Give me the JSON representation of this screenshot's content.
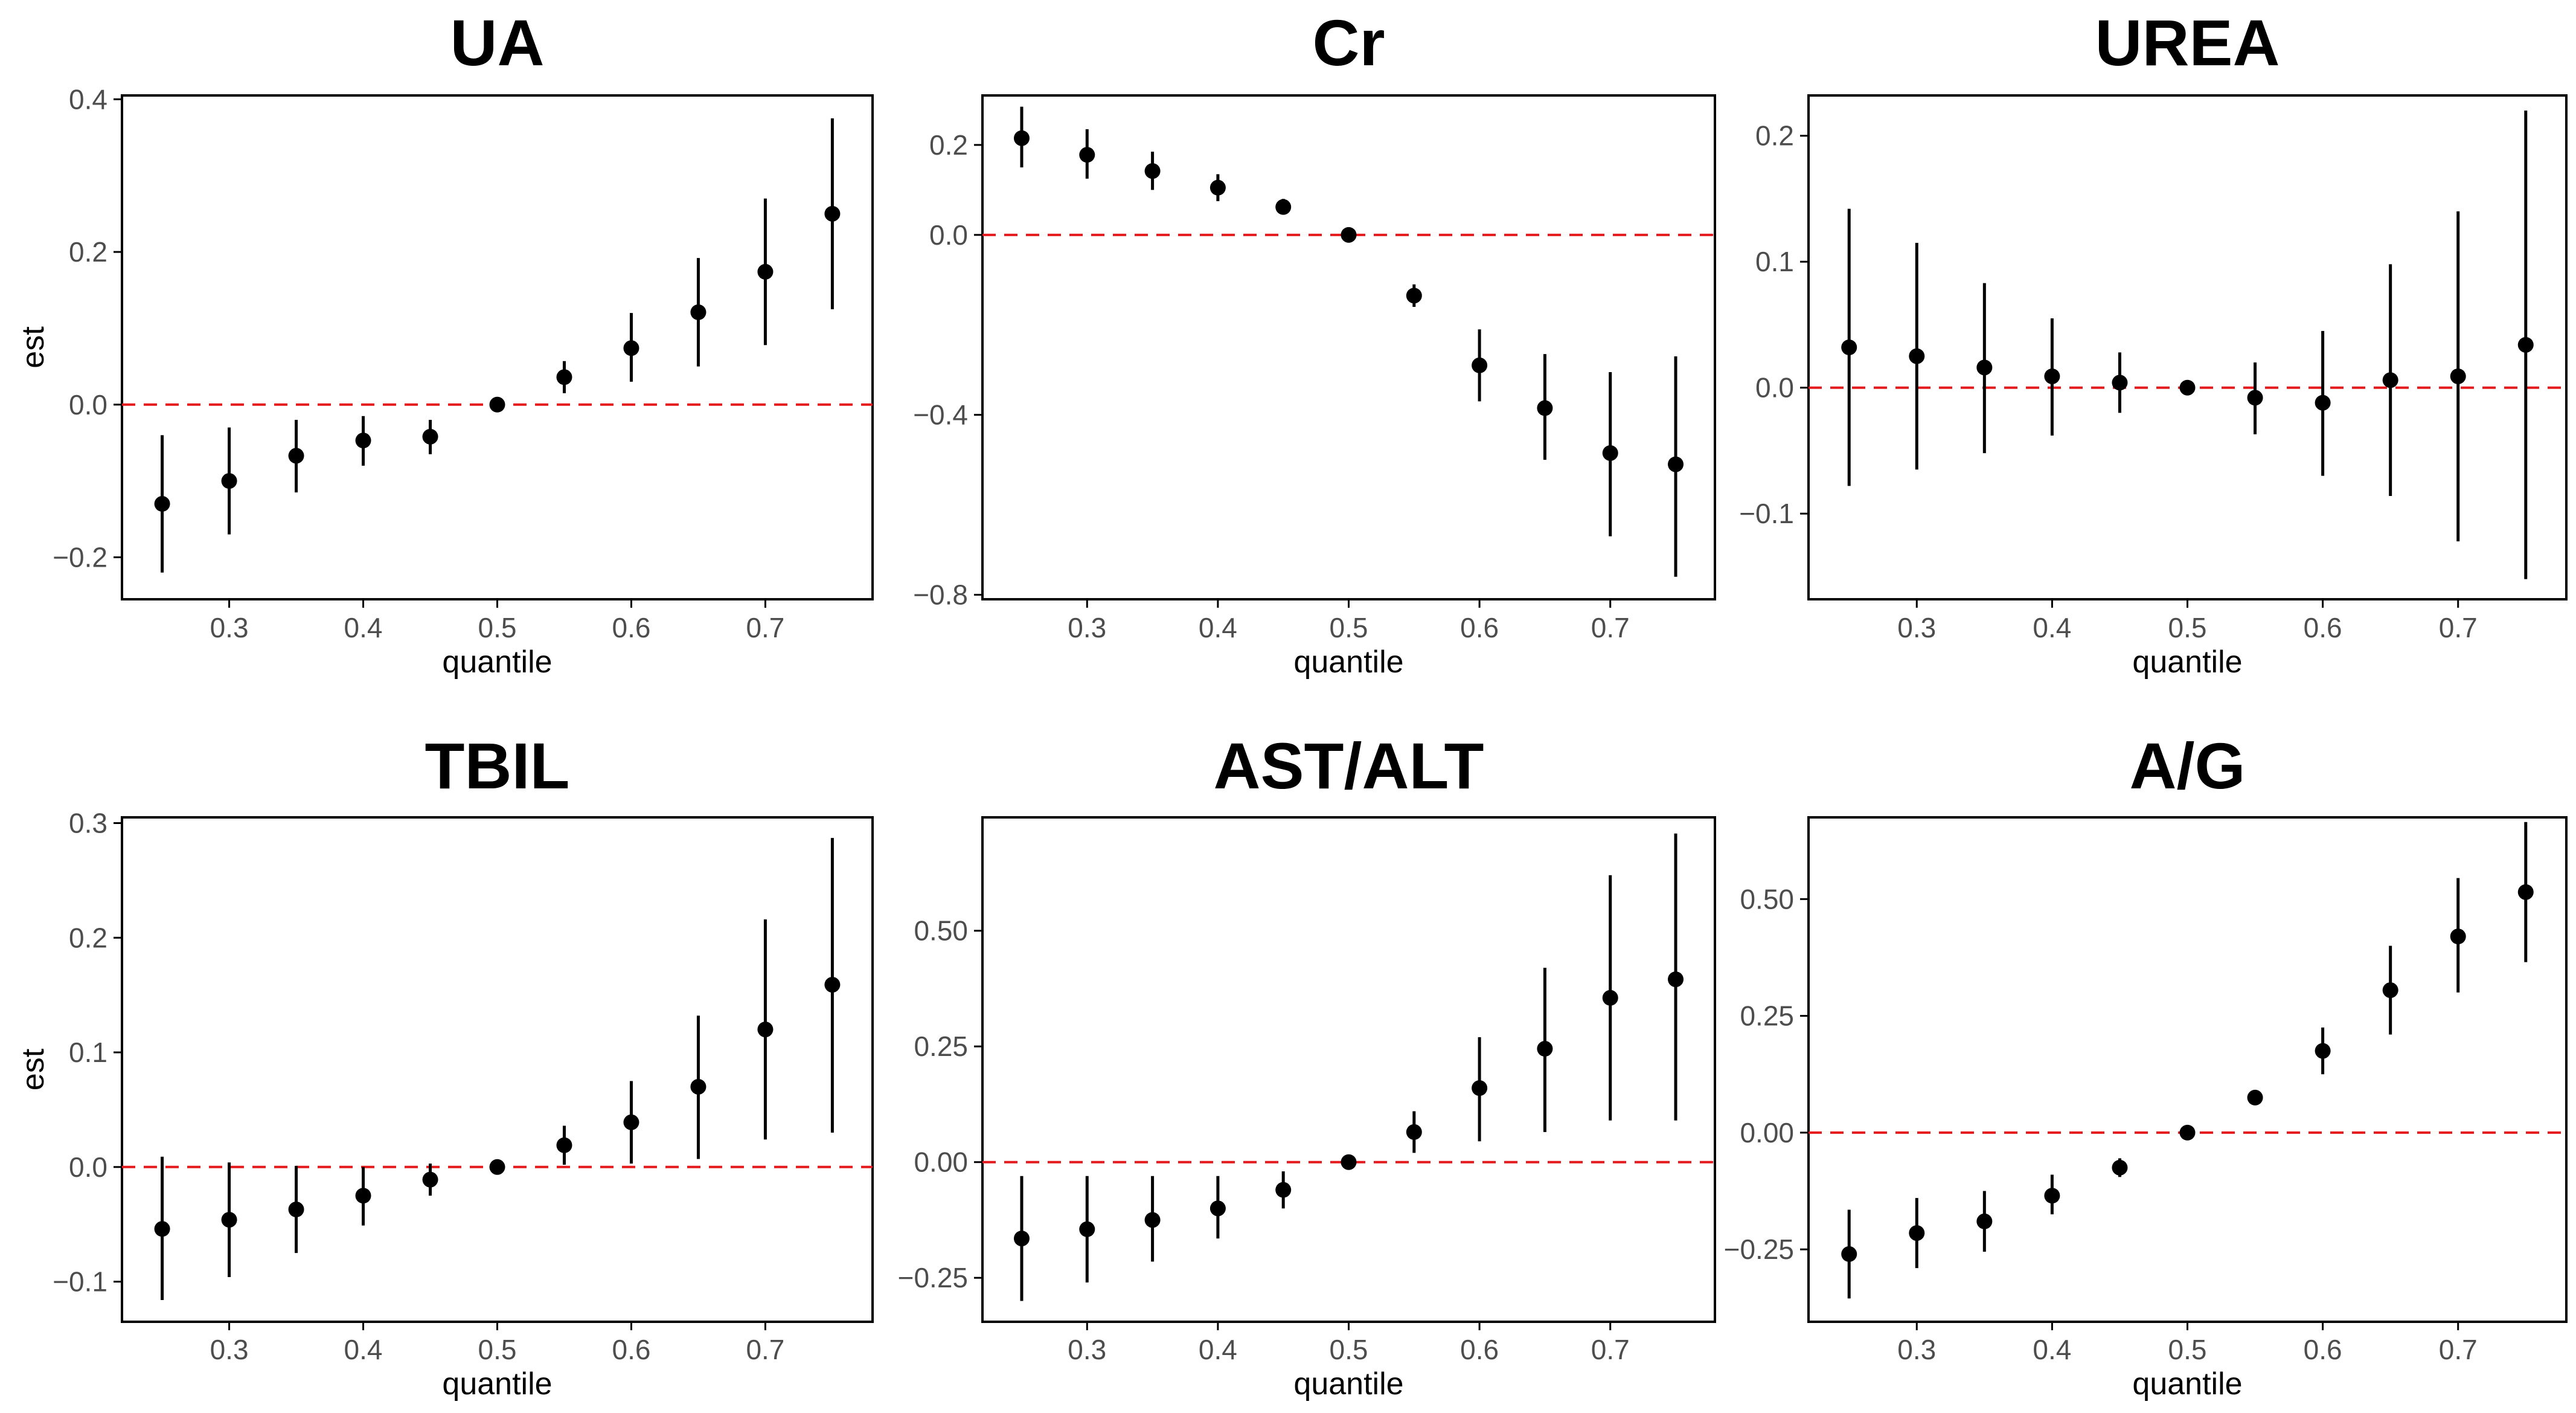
{
  "colors": {
    "point": "#000000",
    "reference_line": "#e41a1c",
    "panel_border": "#000000",
    "tick_label": "#4d4d4d"
  },
  "chart_data": [
    {
      "type": "scatter",
      "title": "UA",
      "xlabel": "quantile",
      "ylabel": "est",
      "xlim": [
        0.22,
        0.78
      ],
      "ylim": [
        -0.255,
        0.405
      ],
      "x_ticks": [
        0.3,
        0.4,
        0.5,
        0.6,
        0.7
      ],
      "x_tick_labels": [
        "0.3",
        "0.4",
        "0.5",
        "0.6",
        "0.7"
      ],
      "y_ticks": [
        -0.2,
        0.0,
        0.2,
        0.4
      ],
      "y_tick_labels": [
        "−0.2",
        "0.0",
        "0.2",
        "0.4"
      ],
      "reference_y": 0,
      "grid": false,
      "x": [
        0.25,
        0.3,
        0.35,
        0.4,
        0.45,
        0.5,
        0.55,
        0.6,
        0.65,
        0.7,
        0.75
      ],
      "y": [
        -0.13,
        -0.1,
        -0.067,
        -0.047,
        -0.042,
        0.0,
        0.036,
        0.074,
        0.121,
        0.174,
        0.25
      ],
      "lower": [
        -0.22,
        -0.17,
        -0.115,
        -0.08,
        -0.065,
        0.0,
        0.015,
        0.03,
        0.05,
        0.078,
        0.125
      ],
      "upper": [
        -0.04,
        -0.03,
        -0.02,
        -0.015,
        -0.02,
        0.0,
        0.057,
        0.12,
        0.192,
        0.27,
        0.375
      ]
    },
    {
      "type": "scatter",
      "title": "Cr",
      "xlabel": "quantile",
      "ylabel": "",
      "xlim": [
        0.22,
        0.78
      ],
      "ylim": [
        -0.81,
        0.31
      ],
      "x_ticks": [
        0.3,
        0.4,
        0.5,
        0.6,
        0.7
      ],
      "x_tick_labels": [
        "0.3",
        "0.4",
        "0.5",
        "0.6",
        "0.7"
      ],
      "y_ticks": [
        -0.8,
        -0.4,
        0.0,
        0.2
      ],
      "y_tick_labels": [
        "−0.8",
        "−0.4",
        "0.0",
        "0.2"
      ],
      "reference_y": 0,
      "grid": false,
      "x": [
        0.25,
        0.3,
        0.35,
        0.4,
        0.45,
        0.5,
        0.55,
        0.6,
        0.65,
        0.7,
        0.75
      ],
      "y": [
        0.215,
        0.178,
        0.142,
        0.105,
        0.062,
        0.0,
        -0.135,
        -0.29,
        -0.385,
        -0.485,
        -0.51
      ],
      "lower": [
        0.15,
        0.125,
        0.1,
        0.075,
        0.045,
        0.0,
        -0.16,
        -0.37,
        -0.5,
        -0.67,
        -0.76
      ],
      "upper": [
        0.285,
        0.235,
        0.185,
        0.135,
        0.08,
        0.0,
        -0.11,
        -0.21,
        -0.265,
        -0.305,
        -0.27
      ]
    },
    {
      "type": "scatter",
      "title": "UREA",
      "xlabel": "quantile",
      "ylabel": "",
      "xlim": [
        0.22,
        0.78
      ],
      "ylim": [
        -0.168,
        0.232
      ],
      "x_ticks": [
        0.3,
        0.4,
        0.5,
        0.6,
        0.7
      ],
      "x_tick_labels": [
        "0.3",
        "0.4",
        "0.5",
        "0.6",
        "0.7"
      ],
      "y_ticks": [
        -0.1,
        0.0,
        0.1,
        0.2
      ],
      "y_tick_labels": [
        "−0.1",
        "0.0",
        "0.1",
        "0.2"
      ],
      "reference_y": 0,
      "grid": false,
      "x": [
        0.25,
        0.3,
        0.35,
        0.4,
        0.45,
        0.5,
        0.55,
        0.6,
        0.65,
        0.7,
        0.75
      ],
      "y": [
        0.032,
        0.025,
        0.016,
        0.009,
        0.004,
        0.0,
        -0.008,
        -0.012,
        0.006,
        0.009,
        0.034
      ],
      "lower": [
        -0.078,
        -0.065,
        -0.052,
        -0.038,
        -0.02,
        0.0,
        -0.037,
        -0.07,
        -0.086,
        -0.122,
        -0.152
      ],
      "upper": [
        0.142,
        0.115,
        0.083,
        0.055,
        0.028,
        0.0,
        0.02,
        0.045,
        0.098,
        0.14,
        0.22
      ]
    },
    {
      "type": "scatter",
      "title": "TBIL",
      "xlabel": "quantile",
      "ylabel": "est",
      "xlim": [
        0.22,
        0.78
      ],
      "ylim": [
        -0.135,
        0.305
      ],
      "x_ticks": [
        0.3,
        0.4,
        0.5,
        0.6,
        0.7
      ],
      "x_tick_labels": [
        "0.3",
        "0.4",
        "0.5",
        "0.6",
        "0.7"
      ],
      "y_ticks": [
        -0.1,
        0.0,
        0.1,
        0.2,
        0.3
      ],
      "y_tick_labels": [
        "−0.1",
        "0.0",
        "0.1",
        "0.2",
        "0.3"
      ],
      "reference_y": 0,
      "grid": false,
      "x": [
        0.25,
        0.3,
        0.35,
        0.4,
        0.45,
        0.5,
        0.55,
        0.6,
        0.65,
        0.7,
        0.75
      ],
      "y": [
        -0.054,
        -0.046,
        -0.037,
        -0.025,
        -0.011,
        0.0,
        0.019,
        0.039,
        0.07,
        0.12,
        0.159
      ],
      "lower": [
        -0.116,
        -0.096,
        -0.075,
        -0.051,
        -0.025,
        0.0,
        0.002,
        0.003,
        0.007,
        0.024,
        0.03
      ],
      "upper": [
        0.009,
        0.004,
        0.001,
        0.0,
        0.003,
        0.0,
        0.036,
        0.075,
        0.132,
        0.216,
        0.287
      ]
    },
    {
      "type": "scatter",
      "title": "AST/ALT",
      "xlabel": "quantile",
      "ylabel": "",
      "xlim": [
        0.22,
        0.78
      ],
      "ylim": [
        -0.345,
        0.745
      ],
      "x_ticks": [
        0.3,
        0.4,
        0.5,
        0.6,
        0.7
      ],
      "x_tick_labels": [
        "0.3",
        "0.4",
        "0.5",
        "0.6",
        "0.7"
      ],
      "y_ticks": [
        -0.25,
        0.0,
        0.25,
        0.5
      ],
      "y_tick_labels": [
        "−0.25",
        "0.00",
        "0.25",
        "0.50"
      ],
      "reference_y": 0,
      "grid": false,
      "x": [
        0.25,
        0.3,
        0.35,
        0.4,
        0.45,
        0.5,
        0.55,
        0.6,
        0.65,
        0.7,
        0.75
      ],
      "y": [
        -0.165,
        -0.145,
        -0.125,
        -0.1,
        -0.06,
        0.0,
        0.065,
        0.16,
        0.245,
        0.355,
        0.395
      ],
      "lower": [
        -0.3,
        -0.26,
        -0.215,
        -0.165,
        -0.1,
        0.0,
        0.02,
        0.045,
        0.065,
        0.09,
        0.09
      ],
      "upper": [
        -0.03,
        -0.03,
        -0.03,
        -0.03,
        -0.02,
        0.0,
        0.11,
        0.27,
        0.42,
        0.62,
        0.71
      ]
    },
    {
      "type": "scatter",
      "title": "A/G",
      "xlabel": "quantile",
      "ylabel": "",
      "xlim": [
        0.22,
        0.78
      ],
      "ylim": [
        -0.405,
        0.675
      ],
      "x_ticks": [
        0.3,
        0.4,
        0.5,
        0.6,
        0.7
      ],
      "x_tick_labels": [
        "0.3",
        "0.4",
        "0.5",
        "0.6",
        "0.7"
      ],
      "y_ticks": [
        -0.25,
        0.0,
        0.25,
        0.5
      ],
      "y_tick_labels": [
        "−0.25",
        "0.00",
        "0.25",
        "0.50"
      ],
      "reference_y": 0,
      "grid": false,
      "x": [
        0.25,
        0.3,
        0.35,
        0.4,
        0.45,
        0.5,
        0.55,
        0.6,
        0.65,
        0.7,
        0.75
      ],
      "y": [
        -0.26,
        -0.215,
        -0.19,
        -0.135,
        -0.075,
        0.0,
        0.075,
        0.175,
        0.305,
        0.42,
        0.515
      ],
      "lower": [
        -0.355,
        -0.29,
        -0.255,
        -0.175,
        -0.095,
        0.0,
        0.06,
        0.125,
        0.21,
        0.3,
        0.365
      ],
      "upper": [
        -0.165,
        -0.14,
        -0.125,
        -0.09,
        -0.055,
        0.0,
        0.09,
        0.225,
        0.4,
        0.545,
        0.665
      ]
    }
  ]
}
